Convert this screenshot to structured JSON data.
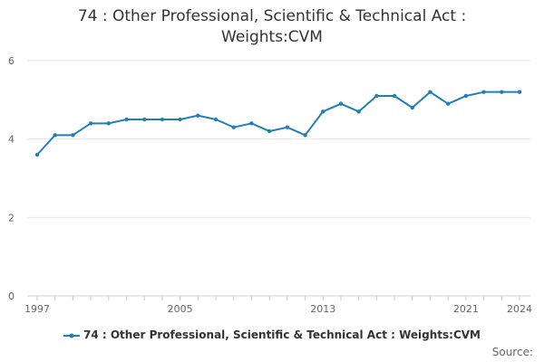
{
  "chart_data": {
    "type": "line",
    "title_line1": "74 : Other Professional, Scientific & Technical Act :",
    "title_line2": "Weights:CVM",
    "x": [
      1997,
      1998,
      1999,
      2000,
      2001,
      2002,
      2003,
      2004,
      2005,
      2006,
      2007,
      2008,
      2009,
      2010,
      2011,
      2012,
      2013,
      2014,
      2015,
      2016,
      2017,
      2018,
      2019,
      2020,
      2021,
      2022,
      2023,
      2024
    ],
    "x_tick_labels": [
      "1997",
      "2005",
      "2013",
      "2021",
      "2024"
    ],
    "y_tick_labels": [
      "0",
      "2",
      "4",
      "6"
    ],
    "ylim": [
      0,
      6
    ],
    "grid": true,
    "legend_position": "bottom",
    "series": [
      {
        "name": "74 : Other Professional, Scientific & Technical Act : Weights:CVM",
        "color": "#1f7fb8",
        "values": [
          3.6,
          4.1,
          4.1,
          4.4,
          4.4,
          4.5,
          4.5,
          4.5,
          4.5,
          4.6,
          4.5,
          4.3,
          4.4,
          4.2,
          4.3,
          4.1,
          4.7,
          4.9,
          4.7,
          5.1,
          5.1,
          4.8,
          5.2,
          4.9,
          5.1,
          5.2,
          5.2,
          5.2
        ]
      }
    ]
  },
  "source_label": "Source:"
}
